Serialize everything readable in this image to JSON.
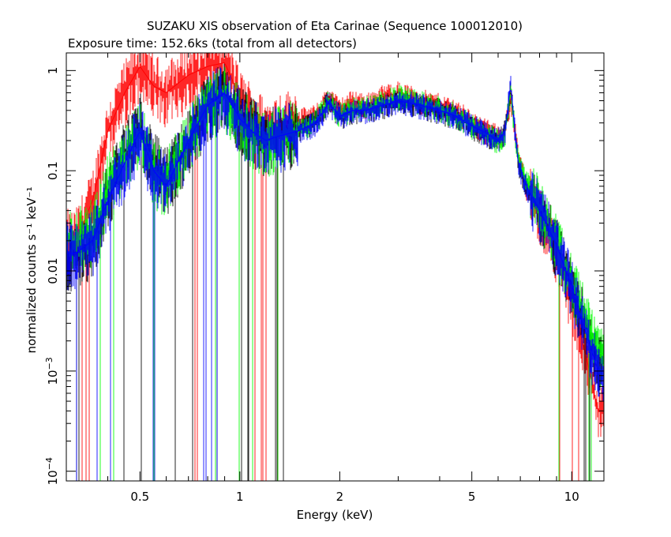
{
  "chart_data": {
    "type": "line",
    "title": "SUZAKU XIS observation of Eta Carinae (Sequence 100012010)",
    "subtitle": "Exposure time: 152.6ks (total from all detectors)",
    "xlabel": "Energy (keV)",
    "ylabel": "normalized counts s⁻¹ keV⁻¹",
    "xscale": "log",
    "yscale": "log",
    "xlim": [
      0.3,
      12.5
    ],
    "ylim": [
      8e-05,
      1.5
    ],
    "grid": false,
    "x_ticks": [
      {
        "value": 0.5,
        "label": "0.5"
      },
      {
        "value": 1,
        "label": "1"
      },
      {
        "value": 2,
        "label": "2"
      },
      {
        "value": 5,
        "label": "5"
      },
      {
        "value": 10,
        "label": "10"
      }
    ],
    "y_ticks": [
      {
        "value": 0.0001,
        "base": "10",
        "exp": "−4"
      },
      {
        "value": 0.001,
        "base": "10",
        "exp": "−3"
      },
      {
        "value": 0.01,
        "label": "0.01"
      },
      {
        "value": 0.1,
        "label": "0.1"
      },
      {
        "value": 1,
        "label": "1"
      }
    ],
    "series": [
      {
        "color": "#ff0000",
        "x": [
          0.32,
          0.36,
          0.4,
          0.45,
          0.5,
          0.55,
          0.6,
          0.7,
          0.8,
          0.9,
          0.95,
          1.0,
          1.1,
          1.2,
          1.3,
          1.5,
          1.7,
          1.85,
          2.0,
          2.2,
          2.4,
          2.7,
          3.0,
          3.5,
          4.0,
          4.5,
          5.0,
          5.5,
          6.0,
          6.3,
          6.55,
          6.7,
          6.9,
          7.3,
          8.0,
          9.0,
          10.0,
          11.0,
          12.0
        ],
        "values": [
          0.02,
          0.05,
          0.25,
          0.6,
          1.1,
          0.7,
          0.6,
          0.9,
          1.1,
          1.2,
          0.8,
          0.5,
          0.35,
          0.25,
          0.3,
          0.32,
          0.35,
          0.55,
          0.4,
          0.5,
          0.45,
          0.55,
          0.6,
          0.5,
          0.45,
          0.4,
          0.3,
          0.25,
          0.22,
          0.25,
          0.55,
          0.3,
          0.13,
          0.07,
          0.04,
          0.015,
          0.005,
          0.0015,
          0.0004
        ]
      },
      {
        "color": "#000000",
        "x": [
          0.32,
          0.36,
          0.4,
          0.45,
          0.5,
          0.55,
          0.6,
          0.7,
          0.8,
          0.9,
          0.95,
          1.0,
          1.1,
          1.2,
          1.3,
          1.5,
          1.7,
          1.85,
          2.0,
          2.2,
          2.4,
          2.7,
          3.0,
          3.5,
          4.0,
          4.5,
          5.0,
          5.5,
          6.0,
          6.3,
          6.55,
          6.7,
          6.9,
          7.3,
          8.0,
          9.0,
          10.0,
          11.0,
          12.0
        ],
        "values": [
          0.015,
          0.02,
          0.06,
          0.15,
          0.3,
          0.12,
          0.08,
          0.2,
          0.45,
          0.6,
          0.45,
          0.35,
          0.25,
          0.2,
          0.22,
          0.26,
          0.32,
          0.5,
          0.35,
          0.4,
          0.4,
          0.45,
          0.5,
          0.45,
          0.4,
          0.35,
          0.28,
          0.24,
          0.2,
          0.25,
          0.7,
          0.3,
          0.12,
          0.07,
          0.04,
          0.018,
          0.007,
          0.003,
          0.0012
        ]
      },
      {
        "color": "#00ff00",
        "x": [
          0.32,
          0.36,
          0.4,
          0.45,
          0.5,
          0.55,
          0.6,
          0.7,
          0.8,
          0.9,
          0.95,
          1.0,
          1.1,
          1.2,
          1.3,
          1.5,
          1.7,
          1.85,
          2.0,
          2.2,
          2.4,
          2.7,
          3.0,
          3.5,
          4.0,
          4.5,
          5.0,
          5.5,
          6.0,
          6.3,
          6.55,
          6.7,
          6.9,
          7.3,
          8.0,
          9.0,
          10.0,
          11.0,
          12.0
        ],
        "values": [
          0.02,
          0.025,
          0.07,
          0.15,
          0.25,
          0.1,
          0.08,
          0.2,
          0.45,
          0.55,
          0.42,
          0.33,
          0.24,
          0.2,
          0.22,
          0.26,
          0.32,
          0.5,
          0.36,
          0.42,
          0.42,
          0.48,
          0.55,
          0.48,
          0.42,
          0.36,
          0.28,
          0.24,
          0.2,
          0.24,
          0.65,
          0.3,
          0.13,
          0.08,
          0.045,
          0.02,
          0.008,
          0.0035,
          0.0015
        ]
      },
      {
        "color": "#0000ff",
        "x": [
          0.32,
          0.36,
          0.4,
          0.45,
          0.5,
          0.55,
          0.6,
          0.7,
          0.8,
          0.9,
          0.95,
          1.0,
          1.1,
          1.2,
          1.3,
          1.5,
          1.7,
          1.85,
          2.0,
          2.2,
          2.4,
          2.7,
          3.0,
          3.5,
          4.0,
          4.5,
          5.0,
          5.5,
          6.0,
          6.3,
          6.55,
          6.7,
          6.9,
          7.3,
          8.0,
          9.0,
          10.0,
          11.0,
          12.0
        ],
        "values": [
          0.015,
          0.02,
          0.05,
          0.12,
          0.25,
          0.1,
          0.07,
          0.2,
          0.45,
          0.6,
          0.45,
          0.33,
          0.24,
          0.2,
          0.22,
          0.25,
          0.3,
          0.48,
          0.35,
          0.4,
          0.4,
          0.45,
          0.5,
          0.45,
          0.4,
          0.35,
          0.28,
          0.24,
          0.2,
          0.25,
          0.75,
          0.3,
          0.12,
          0.07,
          0.04,
          0.018,
          0.007,
          0.0025,
          0.001
        ]
      }
    ]
  }
}
